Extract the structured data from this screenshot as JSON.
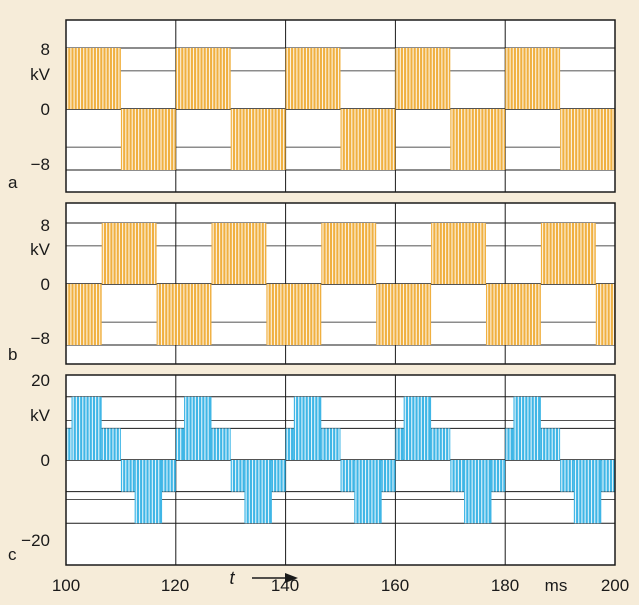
{
  "colors": {
    "background": "#f6ecd9",
    "frame": "#1a1a1a",
    "orange": "#f0b040",
    "blue": "#3fb6e6"
  },
  "axis": {
    "time_label": "t",
    "time_unit": "ms",
    "x_ticks": [
      "100",
      "120",
      "140",
      "160",
      "180",
      "200"
    ]
  },
  "chart_data": [
    {
      "type": "line",
      "panel": "a",
      "x_range_ms": [
        100,
        200
      ],
      "ylim_kV": [
        -10,
        11
      ],
      "y_ticks": [
        "8",
        "kV",
        "0",
        "−8"
      ],
      "grid": true,
      "waveform": "two-level PWM",
      "levels_kV": [
        -8,
        0,
        8
      ],
      "period_ms": 20,
      "segments": [
        {
          "start_ms": 100,
          "end_ms": 110,
          "level_kV": 8
        },
        {
          "start_ms": 110,
          "end_ms": 120,
          "level_kV": -8
        },
        {
          "start_ms": 120,
          "end_ms": 130,
          "level_kV": 8
        },
        {
          "start_ms": 130,
          "end_ms": 140,
          "level_kV": -8
        },
        {
          "start_ms": 140,
          "end_ms": 150,
          "level_kV": 8
        },
        {
          "start_ms": 150,
          "end_ms": 160,
          "level_kV": -8
        },
        {
          "start_ms": 160,
          "end_ms": 170,
          "level_kV": 8
        },
        {
          "start_ms": 170,
          "end_ms": 180,
          "level_kV": -8
        },
        {
          "start_ms": 180,
          "end_ms": 190,
          "level_kV": 8
        },
        {
          "start_ms": 190,
          "end_ms": 200,
          "level_kV": -8
        }
      ]
    },
    {
      "type": "line",
      "panel": "b",
      "x_range_ms": [
        100,
        200
      ],
      "ylim_kV": [
        -10,
        11
      ],
      "y_ticks": [
        "8",
        "kV",
        "0",
        "−8"
      ],
      "grid": true,
      "waveform": "two-level PWM (phase shifted)",
      "levels_kV": [
        -8,
        0,
        8
      ],
      "period_ms": 20,
      "segments": [
        {
          "start_ms": 100,
          "end_ms": 106.5,
          "level_kV": -8
        },
        {
          "start_ms": 106.5,
          "end_ms": 116.5,
          "level_kV": 8
        },
        {
          "start_ms": 116.5,
          "end_ms": 126.5,
          "level_kV": -8
        },
        {
          "start_ms": 126.5,
          "end_ms": 136.5,
          "level_kV": 8
        },
        {
          "start_ms": 136.5,
          "end_ms": 146.5,
          "level_kV": -8
        },
        {
          "start_ms": 146.5,
          "end_ms": 156.5,
          "level_kV": 8
        },
        {
          "start_ms": 156.5,
          "end_ms": 166.5,
          "level_kV": -8
        },
        {
          "start_ms": 166.5,
          "end_ms": 176.5,
          "level_kV": 8
        },
        {
          "start_ms": 176.5,
          "end_ms": 186.5,
          "level_kV": -8
        },
        {
          "start_ms": 186.5,
          "end_ms": 196.5,
          "level_kV": 8
        },
        {
          "start_ms": 196.5,
          "end_ms": 200,
          "level_kV": -8
        }
      ]
    },
    {
      "type": "line",
      "panel": "c",
      "x_range_ms": [
        100,
        200
      ],
      "ylim_kV": [
        -20,
        20
      ],
      "y_ticks": [
        "20",
        "kV",
        "0",
        "−20"
      ],
      "grid": true,
      "waveform": "stepped line-to-line PWM",
      "levels_kV": [
        -16,
        -8,
        0,
        8,
        16
      ],
      "period_ms": 20,
      "segments": [
        {
          "start_ms": 100,
          "end_ms": 101,
          "level_kV": 8
        },
        {
          "start_ms": 101,
          "end_ms": 106.5,
          "level_kV": 16
        },
        {
          "start_ms": 106.5,
          "end_ms": 110,
          "level_kV": 8
        },
        {
          "start_ms": 110,
          "end_ms": 112.5,
          "level_kV": -8
        },
        {
          "start_ms": 112.5,
          "end_ms": 117.5,
          "level_kV": -16
        },
        {
          "start_ms": 117.5,
          "end_ms": 120,
          "level_kV": -8
        },
        {
          "start_ms": 120,
          "end_ms": 121.5,
          "level_kV": 8
        },
        {
          "start_ms": 121.5,
          "end_ms": 126.5,
          "level_kV": 16
        },
        {
          "start_ms": 126.5,
          "end_ms": 130,
          "level_kV": 8
        },
        {
          "start_ms": 130,
          "end_ms": 132.5,
          "level_kV": -8
        },
        {
          "start_ms": 132.5,
          "end_ms": 137.5,
          "level_kV": -16
        },
        {
          "start_ms": 137.5,
          "end_ms": 140,
          "level_kV": -8
        },
        {
          "start_ms": 140,
          "end_ms": 141.5,
          "level_kV": 8
        },
        {
          "start_ms": 141.5,
          "end_ms": 146.5,
          "level_kV": 16
        },
        {
          "start_ms": 146.5,
          "end_ms": 150,
          "level_kV": 8
        },
        {
          "start_ms": 150,
          "end_ms": 152.5,
          "level_kV": -8
        },
        {
          "start_ms": 152.5,
          "end_ms": 157.5,
          "level_kV": -16
        },
        {
          "start_ms": 157.5,
          "end_ms": 160,
          "level_kV": -8
        },
        {
          "start_ms": 160,
          "end_ms": 161.5,
          "level_kV": 8
        },
        {
          "start_ms": 161.5,
          "end_ms": 166.5,
          "level_kV": 16
        },
        {
          "start_ms": 166.5,
          "end_ms": 170,
          "level_kV": 8
        },
        {
          "start_ms": 170,
          "end_ms": 172.5,
          "level_kV": -8
        },
        {
          "start_ms": 172.5,
          "end_ms": 177.5,
          "level_kV": -16
        },
        {
          "start_ms": 177.5,
          "end_ms": 180,
          "level_kV": -8
        },
        {
          "start_ms": 180,
          "end_ms": 181.5,
          "level_kV": 8
        },
        {
          "start_ms": 181.5,
          "end_ms": 186.5,
          "level_kV": 16
        },
        {
          "start_ms": 186.5,
          "end_ms": 190,
          "level_kV": 8
        },
        {
          "start_ms": 190,
          "end_ms": 192.5,
          "level_kV": -8
        },
        {
          "start_ms": 192.5,
          "end_ms": 197.5,
          "level_kV": -16
        },
        {
          "start_ms": 197.5,
          "end_ms": 200,
          "level_kV": -8
        }
      ]
    }
  ]
}
